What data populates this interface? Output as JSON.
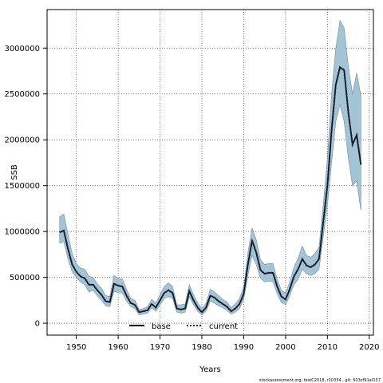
{
  "chart_data": {
    "type": "line",
    "xlabel": "Years",
    "ylabel": "SSB",
    "xlim": [
      1943,
      2021
    ],
    "ylim": [
      -130000,
      3420000
    ],
    "xticks": [
      1950,
      1960,
      1970,
      1980,
      1990,
      2000,
      2010,
      2020
    ],
    "yticks": [
      0,
      500000,
      1000000,
      1500000,
      2000000,
      2500000,
      3000000
    ],
    "grid": true,
    "legend": {
      "placement": "bottom-center",
      "entries": [
        "base",
        "current"
      ]
    },
    "footer": "stockassessment.org, testC2018, r10334 , git: 503cf91af157",
    "colors": {
      "band": "#a2c4d4",
      "band_edge": "#6f8fa0",
      "current_line": "#1b2a44",
      "base_line": "#000000",
      "grid": "#555555"
    },
    "series": [
      {
        "name": "current",
        "x": [
          1946,
          1947,
          1948,
          1949,
          1950,
          1951,
          1952,
          1953,
          1954,
          1955,
          1956,
          1957,
          1958,
          1959,
          1960,
          1961,
          1962,
          1963,
          1964,
          1965,
          1966,
          1967,
          1968,
          1969,
          1970,
          1971,
          1972,
          1973,
          1974,
          1975,
          1976,
          1977,
          1978,
          1979,
          1980,
          1981,
          1982,
          1983,
          1984,
          1985,
          1986,
          1987,
          1988,
          1989,
          1990,
          1991,
          1992,
          1993,
          1994,
          1995,
          1996,
          1997,
          1998,
          1999,
          2000,
          2001,
          2002,
          2003,
          2004,
          2005,
          2006,
          2007,
          2008,
          2009,
          2010,
          2011,
          2012,
          2013,
          2014,
          2015,
          2016,
          2017,
          2018
        ],
        "values": [
          990000,
          1010000,
          810000,
          640000,
          560000,
          510000,
          490000,
          420000,
          420000,
          360000,
          310000,
          240000,
          230000,
          430000,
          410000,
          400000,
          300000,
          220000,
          200000,
          120000,
          130000,
          140000,
          210000,
          170000,
          250000,
          330000,
          360000,
          330000,
          160000,
          150000,
          160000,
          350000,
          250000,
          170000,
          120000,
          170000,
          300000,
          280000,
          240000,
          210000,
          180000,
          130000,
          160000,
          210000,
          320000,
          640000,
          900000,
          770000,
          580000,
          540000,
          550000,
          550000,
          400000,
          290000,
          260000,
          370000,
          510000,
          590000,
          700000,
          630000,
          610000,
          640000,
          700000,
          1100000,
          1500000,
          2100000,
          2600000,
          2790000,
          2760000,
          2300000,
          1950000,
          2050000,
          1730000
        ],
        "lower": [
          870000,
          890000,
          700000,
          560000,
          500000,
          450000,
          420000,
          340000,
          360000,
          300000,
          250000,
          190000,
          180000,
          350000,
          330000,
          330000,
          240000,
          180000,
          160000,
          90000,
          100000,
          110000,
          170000,
          130000,
          200000,
          270000,
          290000,
          270000,
          120000,
          110000,
          120000,
          290000,
          200000,
          130000,
          90000,
          130000,
          240000,
          220000,
          190000,
          170000,
          140000,
          100000,
          120000,
          160000,
          260000,
          520000,
          740000,
          640000,
          490000,
          450000,
          460000,
          450000,
          320000,
          230000,
          200000,
          300000,
          420000,
          480000,
          590000,
          540000,
          520000,
          540000,
          590000,
          940000,
          1280000,
          1750000,
          2200000,
          2380000,
          2200000,
          1800000,
          1500000,
          1550000,
          1230000
        ],
        "upper": [
          1160000,
          1190000,
          970000,
          760000,
          650000,
          600000,
          590000,
          510000,
          500000,
          430000,
          380000,
          300000,
          290000,
          520000,
          490000,
          480000,
          370000,
          270000,
          250000,
          150000,
          160000,
          180000,
          260000,
          220000,
          310000,
          400000,
          440000,
          400000,
          200000,
          200000,
          210000,
          420000,
          310000,
          220000,
          160000,
          220000,
          370000,
          340000,
          300000,
          260000,
          230000,
          170000,
          210000,
          270000,
          400000,
          770000,
          1040000,
          910000,
          690000,
          640000,
          650000,
          650000,
          480000,
          360000,
          330000,
          450000,
          610000,
          710000,
          840000,
          740000,
          720000,
          760000,
          830000,
          1290000,
          1800000,
          2500000,
          3000000,
          3300000,
          3220000,
          2800000,
          2500000,
          2730000,
          2480000
        ]
      }
    ]
  }
}
